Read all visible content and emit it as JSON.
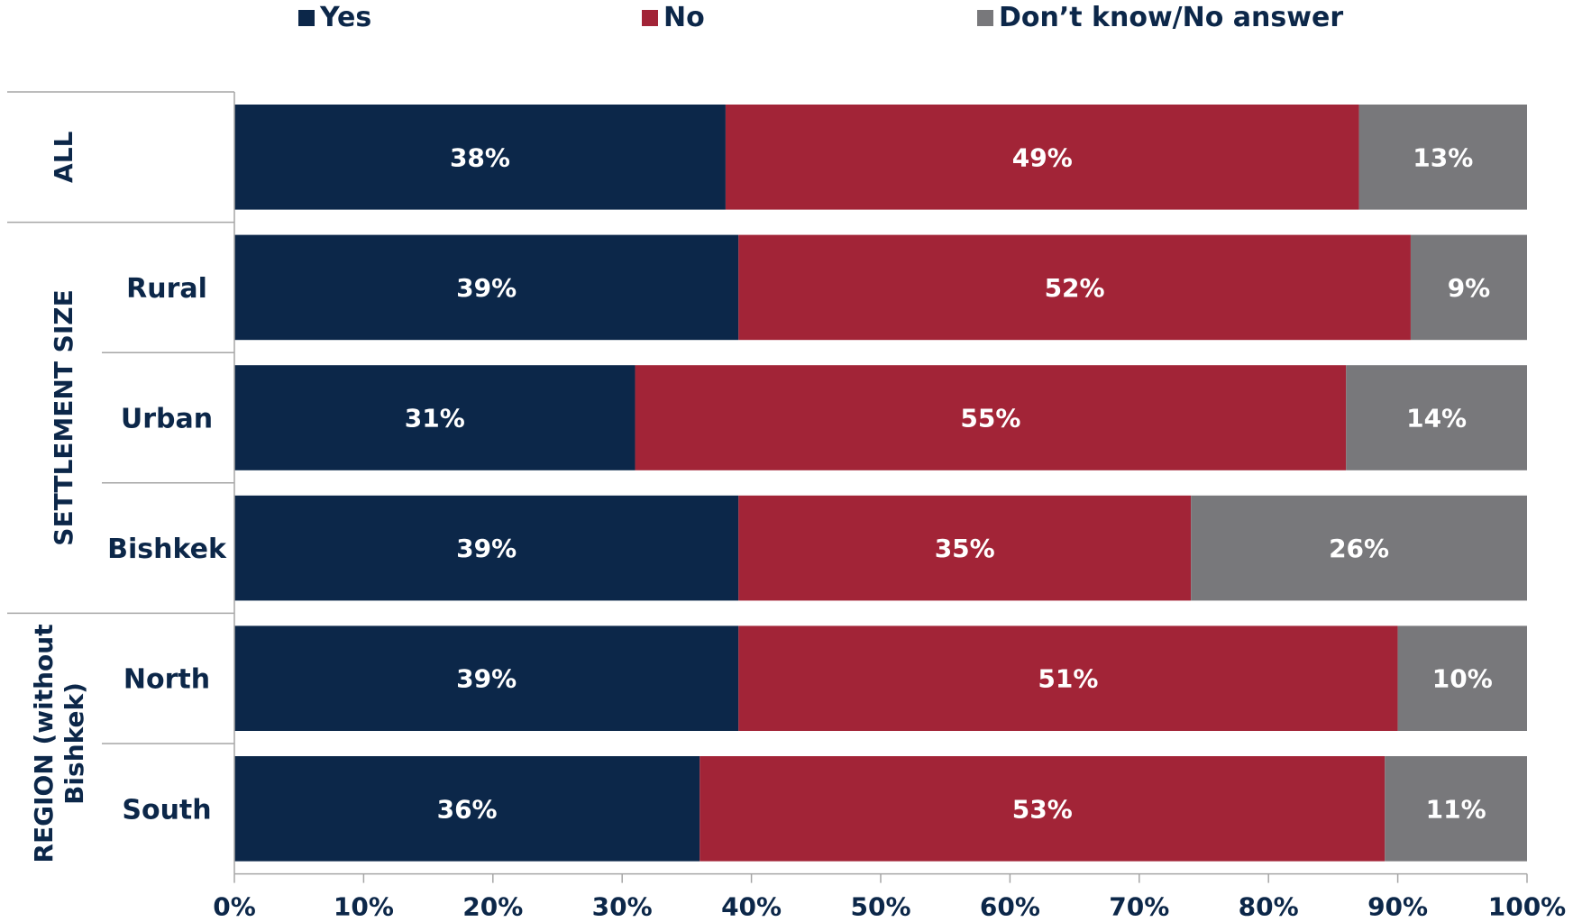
{
  "chart_data": {
    "type": "bar",
    "orientation": "horizontal",
    "stacked": true,
    "title": "",
    "xlabel": "",
    "ylabel": "",
    "xlim": [
      0,
      100
    ],
    "x_ticks": [
      "0%",
      "10%",
      "20%",
      "30%",
      "40%",
      "50%",
      "60%",
      "70%",
      "80%",
      "90%",
      "100%"
    ],
    "legend_placement": "top",
    "groups": [
      {
        "label": "ALL",
        "categories": [
          ""
        ]
      },
      {
        "label": "SETTLEMENT SIZE",
        "categories": [
          "Rural",
          "Urban",
          "Bishkek"
        ]
      },
      {
        "label": "REGION (without Bishkek)",
        "label_lines": [
          "REGION (without",
          "Bishkek)"
        ],
        "categories": [
          "North",
          "South"
        ]
      }
    ],
    "categories": [
      "",
      "Rural",
      "Urban",
      "Bishkek",
      "North",
      "South"
    ],
    "series": [
      {
        "name": "Yes",
        "color": "#0c2749",
        "values": [
          38,
          39,
          31,
          39,
          39,
          36
        ],
        "labels": [
          "38%",
          "39%",
          "31%",
          "39%",
          "39%",
          "36%"
        ]
      },
      {
        "name": "No",
        "color": "#a22437",
        "values": [
          49,
          52,
          55,
          35,
          51,
          53
        ],
        "labels": [
          "49%",
          "52%",
          "55%",
          "35%",
          "51%",
          "53%"
        ]
      },
      {
        "name": "Don’t know/No answer",
        "color": "#78787b",
        "values": [
          13,
          9,
          14,
          26,
          10,
          11
        ],
        "labels": [
          "13%",
          "9%",
          "14%",
          "26%",
          "10%",
          "11%"
        ]
      }
    ]
  }
}
